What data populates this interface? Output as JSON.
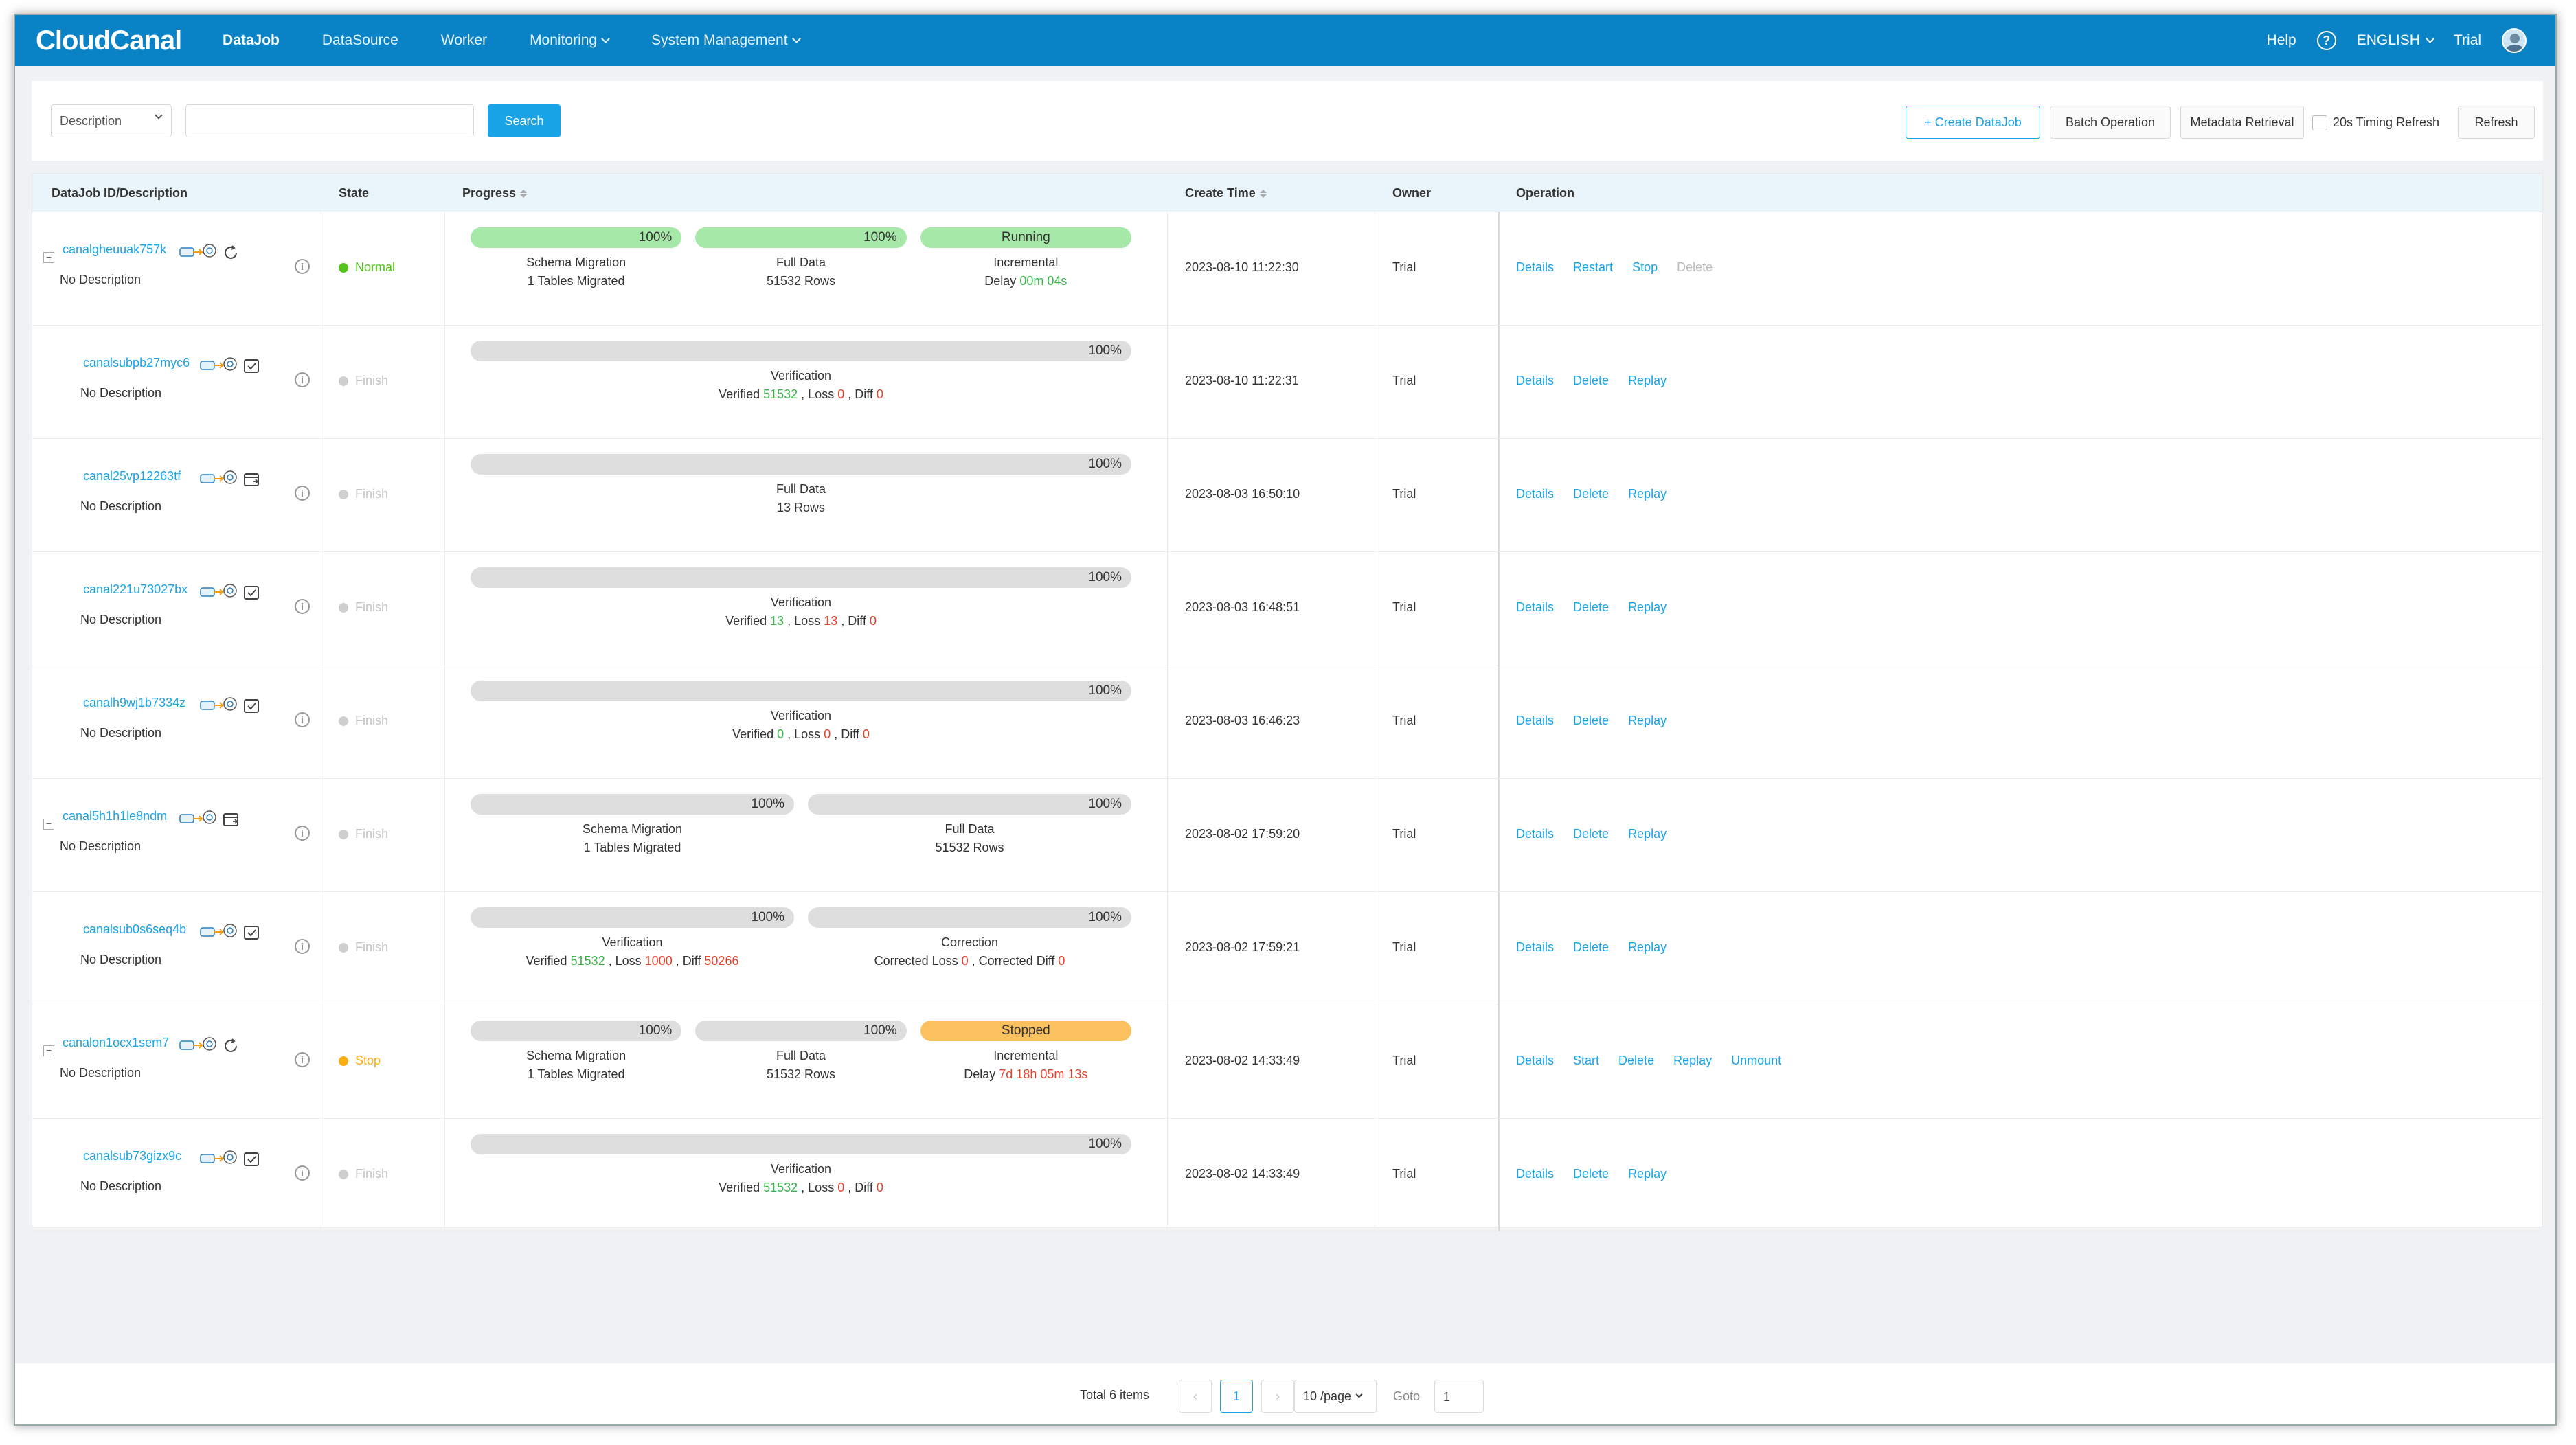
{
  "app": {
    "logo": "CloudCanal"
  },
  "nav": {
    "items": [
      "DataJob",
      "DataSource",
      "Worker",
      "Monitoring",
      "System Management"
    ],
    "help": "Help",
    "help_icon": "?",
    "language": "ENGLISH",
    "user": "Trial"
  },
  "toolbar": {
    "search_field": "Description",
    "search_value": "",
    "search_button": "Search",
    "create_button": "+ Create DataJob",
    "batch_button": "Batch Operation",
    "metadata_button": "Metadata Retrieval",
    "timing_refresh_label": "20s Timing Refresh",
    "timing_refresh_checked": false,
    "refresh_button": "Refresh"
  },
  "table": {
    "headers": {
      "id": "DataJob ID/Description",
      "state": "State",
      "progress": "Progress",
      "create_time": "Create Time",
      "owner": "Owner",
      "operation": "Operation"
    },
    "rows": [
      {
        "id": "canalgheuuak757k",
        "desc": "No Description",
        "expand": "−",
        "type_icon": "refresh-icon",
        "info": "i",
        "state": "Normal",
        "state_color": "#52c41a",
        "bars": [
          {
            "text": "100%",
            "value": 1.0,
            "color": "#a6e8a8"
          },
          {
            "text": "100%",
            "value": 1.0,
            "color": "#a6e8a8"
          },
          {
            "text": "Running",
            "value": 1.0,
            "color": "#a6e8a8"
          }
        ],
        "labels": [
          {
            "l1": "Schema Migration",
            "l2": "1 Tables Migrated"
          },
          {
            "l1": "Full Data",
            "l2": "51532 Rows"
          },
          {
            "l1": "Incremental",
            "l2a": "Delay ",
            "l2b": "00m 04s"
          }
        ],
        "create_time": "2023-08-10 11:22:30",
        "owner": "Trial",
        "ops": [
          "Details",
          "Restart",
          "Stop",
          "Delete"
        ]
      },
      {
        "id": "canalsubpb27myc6",
        "desc": "No Description",
        "type_icon": "check-icon",
        "info": "i",
        "state": "Finish",
        "state_color": "#cfcfcf",
        "bars": [
          {
            "text": "100%",
            "value": 1.0,
            "color": "#dedede"
          }
        ],
        "labels": [
          {
            "l1": "Verification",
            "v1": "Verified ",
            "v2": "51532",
            "v3": " , Loss ",
            "v4": "0",
            "v5": " , Diff ",
            "v6": "0"
          }
        ],
        "create_time": "2023-08-10 11:22:31",
        "owner": "Trial",
        "ops": [
          "Details",
          "Delete",
          "Replay"
        ]
      },
      {
        "id": "canal25vp12263tf",
        "desc": "No Description",
        "type_icon": "calendar-icon",
        "info": "i",
        "state": "Finish",
        "state_color": "#cfcfcf",
        "bars": [
          {
            "text": "100%",
            "value": 1.0,
            "color": "#dedede"
          }
        ],
        "labels": [
          {
            "l1": "Full Data",
            "l2": "13 Rows"
          }
        ],
        "create_time": "2023-08-03 16:50:10",
        "owner": "Trial",
        "ops": [
          "Details",
          "Delete",
          "Replay"
        ]
      },
      {
        "id": "canal221u73027bx",
        "desc": "No Description",
        "type_icon": "check-icon",
        "info": "i",
        "state": "Finish",
        "state_color": "#cfcfcf",
        "bars": [
          {
            "text": "100%",
            "value": 1.0,
            "color": "#dedede"
          }
        ],
        "labels": [
          {
            "l1": "Verification",
            "v1": "Verified ",
            "v2": "13",
            "v3": " , Loss ",
            "v4": "13",
            "v5": " , Diff ",
            "v6": "0"
          }
        ],
        "create_time": "2023-08-03 16:48:51",
        "owner": "Trial",
        "ops": [
          "Details",
          "Delete",
          "Replay"
        ]
      },
      {
        "id": "canalh9wj1b7334z",
        "desc": "No Description",
        "type_icon": "check-icon",
        "info": "i",
        "state": "Finish",
        "state_color": "#cfcfcf",
        "bars": [
          {
            "text": "100%",
            "value": 1.0,
            "color": "#dedede"
          }
        ],
        "labels": [
          {
            "l1": "Verification",
            "v1": "Verified ",
            "v2": "0",
            "v3": " , Loss ",
            "v4": "0",
            "v5": " , Diff ",
            "v6": "0"
          }
        ],
        "create_time": "2023-08-03 16:46:23",
        "owner": "Trial",
        "ops": [
          "Details",
          "Delete",
          "Replay"
        ]
      },
      {
        "id": "canal5h1h1le8ndm",
        "desc": "No Description",
        "expand": "−",
        "type_icon": "calendar-icon",
        "info": "i",
        "state": "Finish",
        "state_color": "#cfcfcf",
        "bars": [
          {
            "text": "100%",
            "value": 1.0,
            "color": "#dedede"
          },
          {
            "text": "100%",
            "value": 1.0,
            "color": "#dedede"
          }
        ],
        "labels": [
          {
            "l1": "Schema Migration",
            "l2": "1 Tables Migrated"
          },
          {
            "l1": "Full Data",
            "l2": "51532 Rows"
          }
        ],
        "create_time": "2023-08-02 17:59:20",
        "owner": "Trial",
        "ops": [
          "Details",
          "Delete",
          "Replay"
        ]
      },
      {
        "id": "canalsub0s6seq4b",
        "desc": "No Description",
        "type_icon": "check-icon",
        "info": "i",
        "state": "Finish",
        "state_color": "#cfcfcf",
        "bars": [
          {
            "text": "100%",
            "value": 1.0,
            "color": "#dedede"
          },
          {
            "text": "100%",
            "value": 1.0,
            "color": "#dedede"
          }
        ],
        "labels": [
          {
            "l1": "Verification",
            "v1": "Verified ",
            "v2": "51532",
            "v3": " , Loss ",
            "v4": "1000",
            "v5": " , Diff ",
            "v6": "50266"
          },
          {
            "l1": "Correction",
            "v1": "Corrected Loss ",
            "v2": "0",
            "v3": " , Corrected Diff ",
            "v4": "0"
          }
        ],
        "create_time": "2023-08-02 17:59:21",
        "owner": "Trial",
        "ops": [
          "Details",
          "Delete",
          "Replay"
        ]
      },
      {
        "id": "canalon1ocx1sem7",
        "desc": "No Description",
        "expand": "−",
        "type_icon": "refresh-icon",
        "info": "i",
        "state": "Stop",
        "state_color": "#faad14",
        "bars": [
          {
            "text": "100%",
            "value": 1.0,
            "color": "#dedede"
          },
          {
            "text": "100%",
            "value": 1.0,
            "color": "#dedede"
          },
          {
            "text": "Stopped",
            "value": 1.0,
            "color": "#fbc15e"
          }
        ],
        "labels": [
          {
            "l1": "Schema Migration",
            "l2": "1 Tables Migrated"
          },
          {
            "l1": "Full Data",
            "l2": "51532 Rows"
          },
          {
            "l1": "Incremental",
            "l2a": "Delay ",
            "l2c": "7d 18h 05m 13s"
          }
        ],
        "create_time": "2023-08-02 14:33:49",
        "owner": "Trial",
        "ops": [
          "Details",
          "Start",
          "Delete",
          "Replay",
          "Unmount"
        ]
      },
      {
        "id": "canalsub73gizx9c",
        "desc": "No Description",
        "type_icon": "check-icon",
        "info": "i",
        "state": "Finish",
        "state_color": "#cfcfcf",
        "bars": [
          {
            "text": "100%",
            "value": 1.0,
            "color": "#dedede"
          }
        ],
        "labels": [
          {
            "l1": "Verification",
            "v1": "Verified ",
            "v2": "51532",
            "v3": " , Loss ",
            "v4": "0",
            "v5": " , Diff ",
            "v6": "0"
          }
        ],
        "create_time": "2023-08-02 14:33:49",
        "owner": "Trial",
        "ops": [
          "Details",
          "Delete",
          "Replay"
        ]
      }
    ]
  },
  "pagination": {
    "total": "Total 6 items",
    "prev": "‹",
    "current": "1",
    "next": "›",
    "page_size": "10 /page",
    "goto_label": "Goto",
    "goto_value": "1"
  },
  "colors": {
    "nav": "#0a83c6",
    "link": "#1aa4e8",
    "green": "#39b54a",
    "red": "#e8412c"
  }
}
